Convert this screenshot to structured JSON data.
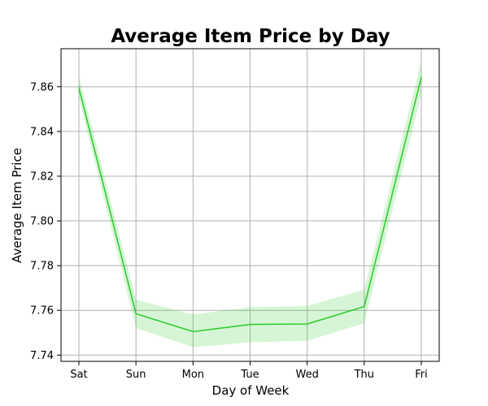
{
  "chart_data": {
    "type": "line",
    "title": "Average Item Price by Day",
    "xlabel": "Day of Week",
    "ylabel": "Average Item Price",
    "categories": [
      "Sat",
      "Sun",
      "Mon",
      "Tue",
      "Wed",
      "Thu",
      "Fri"
    ],
    "series": [
      {
        "values": [
          7.8595,
          7.7585,
          7.7505,
          7.7537,
          7.7539,
          7.7617,
          7.8642
        ],
        "ci_lower": [
          7.855,
          7.752,
          7.7435,
          7.7457,
          7.7464,
          7.7542,
          7.8565
        ],
        "ci_upper": [
          7.865,
          7.7648,
          7.7582,
          7.7614,
          7.762,
          7.7692,
          7.8715
        ],
        "color": "#32cd32",
        "band_color": "#32cd32"
      }
    ],
    "yticks": [
      "7.74",
      "7.76",
      "7.78",
      "7.80",
      "7.82",
      "7.84",
      "7.86"
    ],
    "ylim": [
      7.7372,
      7.877
    ],
    "grid": true
  }
}
